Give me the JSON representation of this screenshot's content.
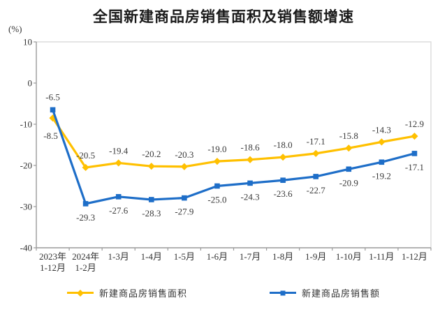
{
  "chart_data": {
    "type": "line",
    "title": "全国新建商品房销售面积及销售额增速",
    "ylabel": "(%)",
    "xlabel": "",
    "categories": [
      "2023年\n1-12月",
      "2024年\n1-2月",
      "1-3月",
      "1-4月",
      "1-5月",
      "1-6月",
      "1-7月",
      "1-8月",
      "1-9月",
      "1-10月",
      "1-11月",
      "1-12月"
    ],
    "series": [
      {
        "name": "新建商品房销售面积",
        "color": "#FFC000",
        "marker": "diamond",
        "values": [
          -8.5,
          -20.5,
          -19.4,
          -20.2,
          -20.3,
          -19.0,
          -18.6,
          -18.0,
          -17.1,
          -15.8,
          -14.3,
          -12.9
        ]
      },
      {
        "name": "新建商品房销售额",
        "color": "#1E6EC8",
        "marker": "square",
        "values": [
          -6.5,
          -29.3,
          -27.6,
          -28.3,
          -27.9,
          -25.0,
          -24.3,
          -23.6,
          -22.7,
          -20.9,
          -19.2,
          -17.1
        ]
      }
    ],
    "ylim": [
      -40,
      10
    ],
    "y_ticks": [
      10,
      0,
      -10,
      -20,
      -30,
      -40
    ],
    "grid": false,
    "legend_position": "bottom",
    "label_decimals": 1
  },
  "style_colors": {
    "axis_line": "#9a9a9a",
    "plot_border": "#dcdcdc",
    "tick_text": "#333333",
    "data_label_text": "#3a3a3a"
  }
}
